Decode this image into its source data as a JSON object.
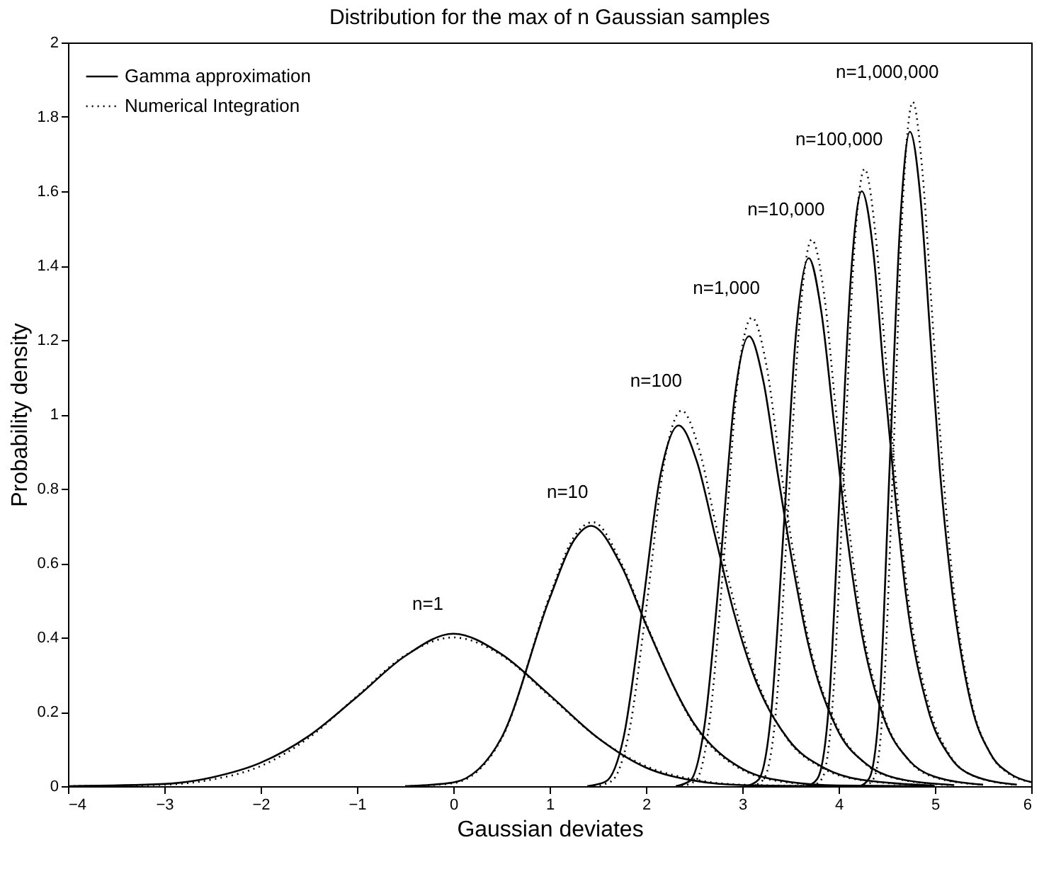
{
  "chart_data": {
    "type": "line",
    "title": "Distribution for the max of n Gaussian samples",
    "xlabel": "Gaussian deviates",
    "ylabel": "Probability density",
    "xlim": [
      -4,
      6
    ],
    "ylim": [
      0,
      2
    ],
    "xticks": [
      -4,
      -3,
      -2,
      -1,
      0,
      1,
      2,
      3,
      4,
      5,
      6
    ],
    "yticks": [
      0,
      0.2,
      0.4,
      0.6,
      0.8,
      1,
      1.2,
      1.4,
      1.6,
      1.8,
      2
    ],
    "grid": false,
    "legend": "top left",
    "marker": "none",
    "series": [
      {
        "name": "Gamma approximation",
        "color": "#000000",
        "line_style": "solid",
        "x": [
          -4,
          -3,
          -2.5,
          -2,
          -1.5,
          -1,
          -0.5,
          0,
          0.5,
          1,
          1.5,
          2,
          2.5,
          3,
          4
        ],
        "values": [
          0,
          0.006,
          0.024,
          0.063,
          0.135,
          0.24,
          0.35,
          0.41,
          0.355,
          0.245,
          0.13,
          0.05,
          0.015,
          0.003,
          0
        ]
      },
      {
        "name": "Numerical Integration",
        "color": "#000000",
        "line_style": "dotted",
        "x": [
          -4,
          -3,
          -2.5,
          -2,
          -1.5,
          -1,
          -0.5,
          0,
          0.5,
          1,
          1.5,
          2,
          2.5,
          3,
          4
        ],
        "values": [
          0,
          0.004,
          0.018,
          0.054,
          0.13,
          0.242,
          0.352,
          0.4,
          0.352,
          0.242,
          0.13,
          0.054,
          0.018,
          0.004,
          0
        ]
      },
      {
        "color": "#000000",
        "line_style": "solid",
        "x": [
          -0.5,
          0,
          0.5,
          1,
          1.25,
          1.43,
          1.75,
          2,
          2.5,
          3,
          3.5,
          4,
          5
        ],
        "values": [
          0,
          0.01,
          0.13,
          0.505,
          0.66,
          0.7,
          0.59,
          0.435,
          0.168,
          0.047,
          0.011,
          0.002,
          0
        ]
      },
      {
        "color": "#000000",
        "line_style": "dotted",
        "x": [
          -0.5,
          0,
          0.5,
          1,
          1.25,
          1.45,
          1.75,
          2,
          2.5,
          3,
          3.5,
          4,
          5
        ],
        "values": [
          0,
          0.008,
          0.127,
          0.511,
          0.669,
          0.71,
          0.597,
          0.439,
          0.165,
          0.044,
          0.009,
          0.001,
          0
        ]
      },
      {
        "color": "#000000",
        "line_style": "solid",
        "x": [
          1.39,
          1.58,
          1.77,
          1.96,
          2.15,
          2.34,
          2.53,
          2.72,
          2.91,
          3.1,
          3.48,
          3.86,
          4.24,
          4.99
        ],
        "values": [
          0,
          0.012,
          0.134,
          0.473,
          0.836,
          0.97,
          0.872,
          0.671,
          0.47,
          0.311,
          0.125,
          0.048,
          0.017,
          0.002
        ]
      },
      {
        "color": "#000000",
        "line_style": "dotted",
        "x": [
          1.46,
          1.64,
          1.82,
          2.01,
          2.19,
          2.37,
          2.55,
          2.73,
          2.92,
          3.1,
          3.46,
          3.83,
          4.19,
          4.92
        ],
        "values": [
          0,
          0.013,
          0.139,
          0.493,
          0.871,
          1.01,
          0.908,
          0.699,
          0.49,
          0.324,
          0.13,
          0.049,
          0.018,
          0.003
        ]
      },
      {
        "color": "#000000",
        "line_style": "solid",
        "x": [
          2.31,
          2.46,
          2.61,
          2.77,
          2.92,
          3.07,
          3.22,
          3.37,
          3.53,
          3.68,
          3.98,
          4.29,
          4.59,
          5.2
        ],
        "values": [
          0,
          0.015,
          0.167,
          0.59,
          1.043,
          1.21,
          1.088,
          0.837,
          0.587,
          0.388,
          0.156,
          0.059,
          0.022,
          0.003
        ]
      },
      {
        "color": "#000000",
        "line_style": "dotted",
        "x": [
          2.37,
          2.52,
          2.66,
          2.81,
          2.95,
          3.1,
          3.25,
          3.39,
          3.54,
          3.68,
          3.98,
          4.27,
          4.56,
          5.14
        ],
        "values": [
          0,
          0.016,
          0.174,
          0.615,
          1.086,
          1.26,
          1.133,
          0.872,
          0.611,
          0.404,
          0.163,
          0.062,
          0.023,
          0.003
        ]
      },
      {
        "color": "#000000",
        "line_style": "solid",
        "x": [
          3.04,
          3.17,
          3.3,
          3.43,
          3.56,
          3.69,
          3.82,
          3.95,
          4.08,
          4.21,
          4.47,
          4.73,
          4.99,
          5.5
        ],
        "values": [
          0,
          0.018,
          0.196,
          0.693,
          1.224,
          1.42,
          1.277,
          0.983,
          0.689,
          0.456,
          0.183,
          0.07,
          0.026,
          0.004
        ]
      },
      {
        "color": "#000000",
        "line_style": "dotted",
        "x": [
          3.1,
          3.22,
          3.35,
          3.47,
          3.6,
          3.72,
          3.85,
          3.97,
          4.1,
          4.22,
          4.47,
          4.72,
          4.97,
          5.47
        ],
        "values": [
          0,
          0.018,
          0.203,
          0.717,
          1.267,
          1.47,
          1.322,
          1.017,
          0.713,
          0.472,
          0.19,
          0.072,
          0.026,
          0.004
        ]
      },
      {
        "color": "#000000",
        "line_style": "solid",
        "x": [
          3.67,
          3.78,
          3.9,
          4.01,
          4.13,
          4.24,
          4.36,
          4.47,
          4.59,
          4.7,
          4.93,
          5.16,
          5.39,
          5.85
        ],
        "values": [
          0,
          0.02,
          0.221,
          0.781,
          1.379,
          1.6,
          1.438,
          1.107,
          0.776,
          0.514,
          0.206,
          0.078,
          0.029,
          0.004
        ]
      },
      {
        "color": "#000000",
        "line_style": "dotted",
        "x": [
          3.72,
          3.83,
          3.94,
          4.05,
          4.16,
          4.27,
          4.38,
          4.49,
          4.6,
          4.71,
          4.94,
          5.16,
          5.38,
          5.82
        ],
        "values": [
          0,
          0.021,
          0.229,
          0.81,
          1.431,
          1.66,
          1.492,
          1.149,
          0.805,
          0.533,
          0.214,
          0.081,
          0.03,
          0.004
        ]
      },
      {
        "color": "#000000",
        "line_style": "solid",
        "x": [
          4.22,
          4.32,
          4.43,
          4.53,
          4.64,
          4.74,
          4.85,
          4.95,
          5.05,
          5.16,
          5.37,
          5.58,
          5.79,
          6
        ],
        "values": [
          0,
          0.022,
          0.243,
          0.859,
          1.517,
          1.76,
          1.582,
          1.218,
          0.854,
          0.565,
          0.227,
          0.086,
          0.032,
          0.011
        ]
      },
      {
        "color": "#000000",
        "line_style": "dotted",
        "x": [
          4.27,
          4.37,
          4.47,
          4.57,
          4.67,
          4.77,
          4.87,
          4.97,
          5.07,
          5.17,
          5.37,
          5.57,
          5.77,
          6
        ],
        "values": [
          0,
          0.023,
          0.254,
          0.898,
          1.586,
          1.84,
          1.654,
          1.273,
          0.892,
          0.591,
          0.237,
          0.09,
          0.033,
          0.011
        ]
      }
    ],
    "annotations": [
      {
        "text": "n=1",
        "x": 0,
        "y": 0.41
      },
      {
        "text": "n=10",
        "x": 1.45,
        "y": 0.71
      },
      {
        "text": "n=100",
        "x": 2.37,
        "y": 1.01
      },
      {
        "text": "n=1,000",
        "x": 3.1,
        "y": 1.26
      },
      {
        "text": "n=10,000",
        "x": 3.72,
        "y": 1.47
      },
      {
        "text": "n=100,000",
        "x": 4.27,
        "y": 1.66
      },
      {
        "text": "n=1,000,000",
        "x": 4.77,
        "y": 1.84
      }
    ]
  }
}
